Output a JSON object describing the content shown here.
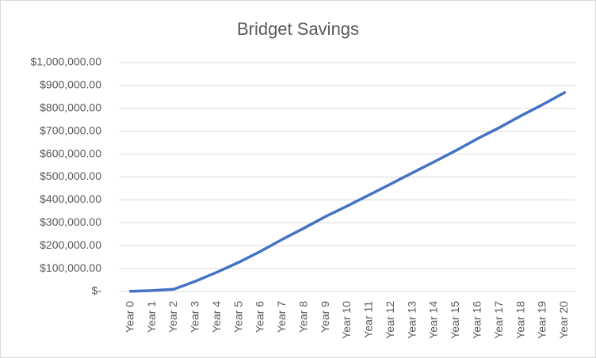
{
  "chart_data": {
    "type": "line",
    "title": "Bridget Savings",
    "categories": [
      "Year 0",
      "Year 1",
      "Year 2",
      "Year 3",
      "Year 4",
      "Year 5",
      "Year 6",
      "Year 7",
      "Year 8",
      "Year 9",
      "Year 10",
      "Year 11",
      "Year 12",
      "Year 13",
      "Year 14",
      "Year 15",
      "Year 16",
      "Year 17",
      "Year 18",
      "Year 19",
      "Year 20"
    ],
    "series": [
      {
        "name": "Bridget Savings",
        "color": "#4472c4",
        "values": [
          1000,
          4000,
          10000,
          45000,
          85000,
          128000,
          176000,
          228000,
          277000,
          328000,
          374000,
          422000,
          470000,
          519000,
          567000,
          616000,
          668000,
          716000,
          768000,
          817000,
          869000
        ]
      }
    ],
    "ylim": [
      0,
      1000000
    ],
    "yticks": [
      {
        "value": 0,
        "label": "$-"
      },
      {
        "value": 100000,
        "label": "$100,000.00"
      },
      {
        "value": 200000,
        "label": "$200,000.00"
      },
      {
        "value": 300000,
        "label": "$300,000.00"
      },
      {
        "value": 400000,
        "label": "$400,000.00"
      },
      {
        "value": 500000,
        "label": "$500,000.00"
      },
      {
        "value": 600000,
        "label": "$600,000.00"
      },
      {
        "value": 700000,
        "label": "$700,000.00"
      },
      {
        "value": 800000,
        "label": "$800,000.00"
      },
      {
        "value": 900000,
        "label": "$900,000.00"
      },
      {
        "value": 1000000,
        "label": "$1,000,000.00"
      }
    ],
    "grid": true
  }
}
